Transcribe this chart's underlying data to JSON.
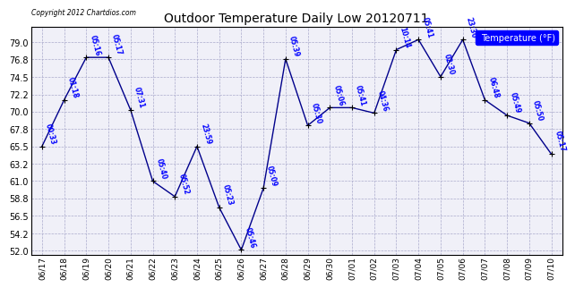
{
  "title": "Outdoor Temperature Daily Low 20120711",
  "copyright": "Copyright 2012 Chartdios.com",
  "legend_label": "Temperature (°F)",
  "background_color": "#ffffff",
  "plot_bg_color": "#f0f0f8",
  "line_color": "#00008B",
  "marker_color": "#000000",
  "grid_color": "#aaaacc",
  "yticks": [
    52.0,
    54.2,
    56.5,
    58.8,
    61.0,
    63.2,
    65.5,
    67.8,
    70.0,
    72.2,
    74.5,
    76.8,
    79.0
  ],
  "dates": [
    "06/17",
    "06/18",
    "06/19",
    "06/20",
    "06/21",
    "06/22",
    "06/23",
    "06/24",
    "06/25",
    "06/26",
    "06/27",
    "06/28",
    "06/29",
    "06/30",
    "07/01",
    "07/02",
    "07/03",
    "07/04",
    "07/05",
    "07/06",
    "07/07",
    "07/08",
    "07/09",
    "07/10"
  ],
  "values": [
    65.5,
    71.5,
    77.0,
    77.0,
    70.2,
    61.0,
    59.0,
    65.5,
    57.6,
    52.1,
    60.1,
    76.8,
    68.2,
    70.5,
    70.5,
    69.8,
    78.0,
    79.3,
    74.5,
    79.3,
    71.5,
    69.5,
    68.5,
    64.5
  ],
  "label_times": [
    "00:33",
    "01:18",
    "05:16",
    "05:17",
    "07:31",
    "05:40",
    "05:52",
    "23:59",
    "05:23",
    "05:46",
    "05:09",
    "05:39",
    "05:30",
    "05:06",
    "05:41",
    "04:36",
    "10:14",
    "05:41",
    "02:30",
    "23:30",
    "06:48",
    "05:49",
    "05:50",
    "05:17"
  ]
}
